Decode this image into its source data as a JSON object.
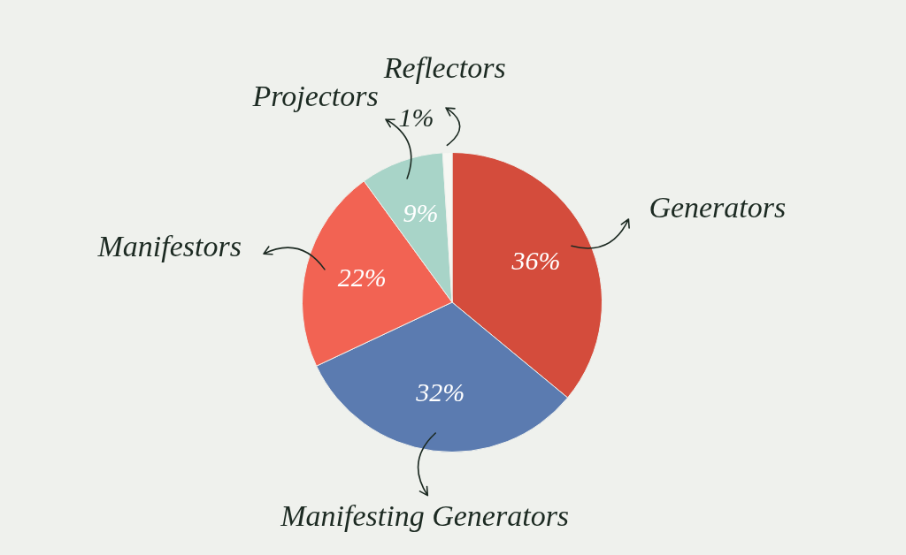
{
  "chart_data": {
    "type": "pie",
    "categories": [
      "Generators",
      "Manifesting Generators",
      "Manifestors",
      "Projectors",
      "Reflectors"
    ],
    "values": [
      36,
      32,
      22,
      9,
      1
    ],
    "colors": [
      "#d44c3c",
      "#5b7bb0",
      "#f26353",
      "#a8d4c8",
      "#f7f7f3"
    ],
    "value_labels": [
      "36%",
      "32%",
      "22%",
      "9%",
      "1%"
    ],
    "legend": false
  }
}
